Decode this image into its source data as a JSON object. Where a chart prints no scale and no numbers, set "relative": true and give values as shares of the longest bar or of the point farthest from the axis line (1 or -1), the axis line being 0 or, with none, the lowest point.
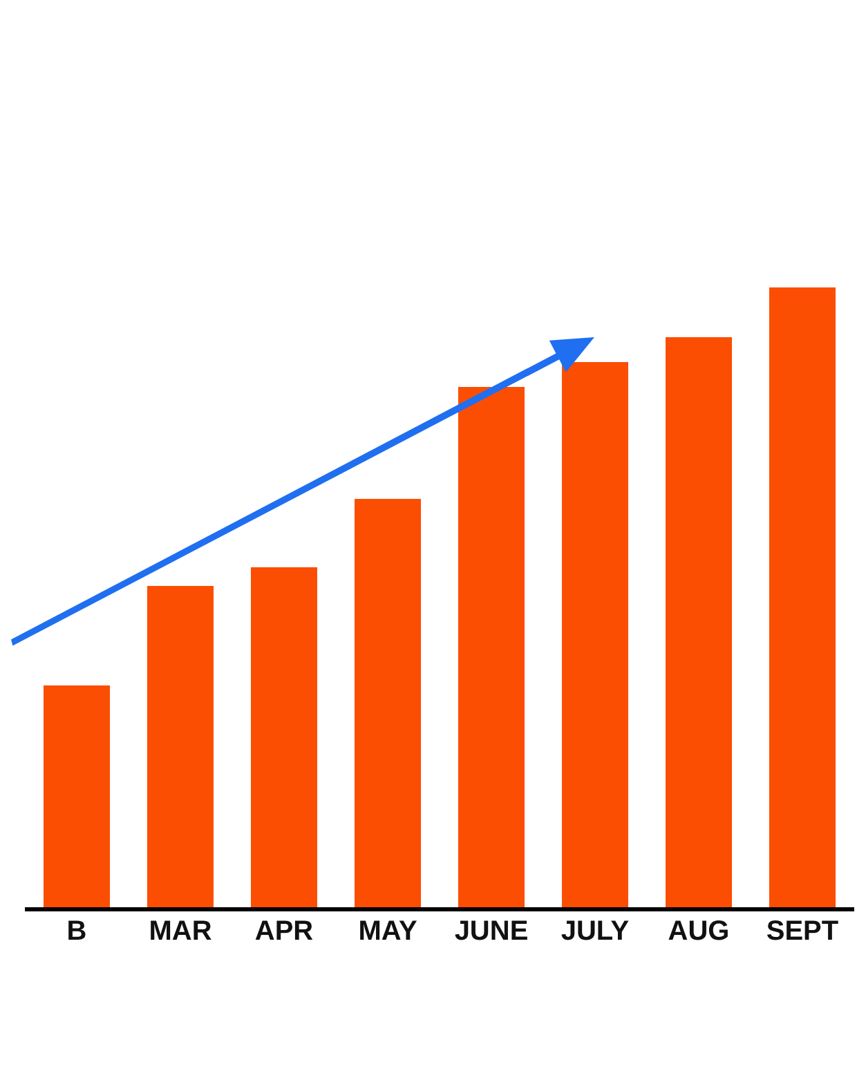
{
  "chart_data": {
    "type": "bar",
    "relative": true,
    "categories": [
      "B",
      "MAR",
      "APR",
      "MAY",
      "JUNE",
      "JULY",
      "AUG",
      "SEPT"
    ],
    "values": [
      0.36,
      0.52,
      0.55,
      0.66,
      0.84,
      0.88,
      0.92,
      1
    ],
    "color": "#fc4e02"
  }
}
